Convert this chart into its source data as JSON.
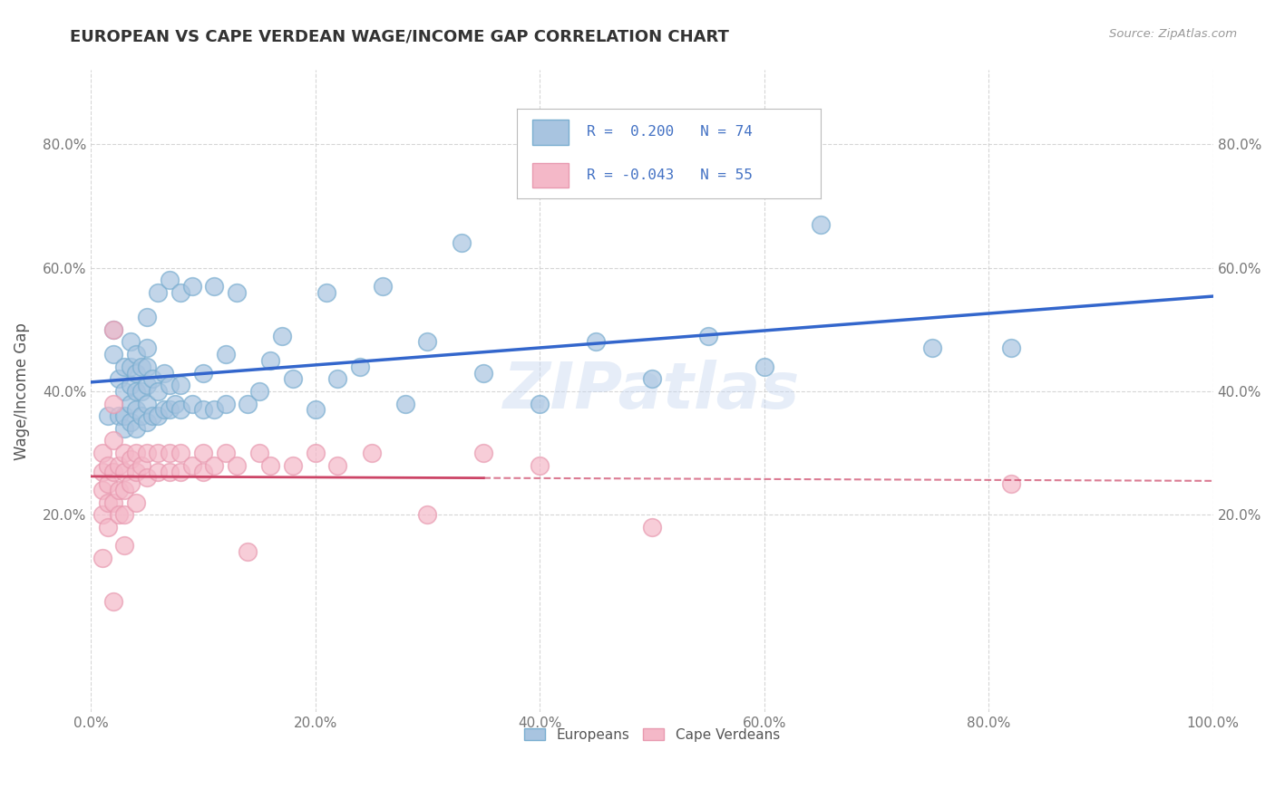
{
  "title": "EUROPEAN VS CAPE VERDEAN WAGE/INCOME GAP CORRELATION CHART",
  "source": "Source: ZipAtlas.com",
  "ylabel": "Wage/Income Gap",
  "xlim": [
    0.0,
    1.0
  ],
  "ylim": [
    -0.12,
    0.92
  ],
  "xticks": [
    0.0,
    0.2,
    0.4,
    0.6,
    0.8,
    1.0
  ],
  "xticklabels": [
    "0.0%",
    "20.0%",
    "40.0%",
    "60.0%",
    "80.0%",
    "100.0%"
  ],
  "yticks": [
    0.2,
    0.4,
    0.6,
    0.8
  ],
  "yticklabels": [
    "20.0%",
    "40.0%",
    "60.0%",
    "80.0%"
  ],
  "blue_color": "#a8c4e0",
  "pink_color": "#f4b8c8",
  "blue_edge_color": "#7aaed0",
  "pink_edge_color": "#e89ab0",
  "blue_line_color": "#3366cc",
  "pink_line_color": "#cc4466",
  "background_color": "#ffffff",
  "grid_color": "#cccccc",
  "watermark": "ZIPatlas",
  "title_color": "#333333",
  "axis_label_color": "#555555",
  "tick_color": "#777777",
  "legend_text_color": "#4472c4",
  "european_x": [
    0.015,
    0.02,
    0.02,
    0.025,
    0.025,
    0.03,
    0.03,
    0.03,
    0.03,
    0.035,
    0.035,
    0.035,
    0.035,
    0.035,
    0.04,
    0.04,
    0.04,
    0.04,
    0.04,
    0.045,
    0.045,
    0.045,
    0.05,
    0.05,
    0.05,
    0.05,
    0.05,
    0.05,
    0.055,
    0.055,
    0.06,
    0.06,
    0.06,
    0.065,
    0.065,
    0.07,
    0.07,
    0.07,
    0.075,
    0.08,
    0.08,
    0.08,
    0.09,
    0.09,
    0.1,
    0.1,
    0.11,
    0.11,
    0.12,
    0.12,
    0.13,
    0.14,
    0.15,
    0.16,
    0.17,
    0.18,
    0.2,
    0.21,
    0.22,
    0.24,
    0.26,
    0.28,
    0.3,
    0.33,
    0.35,
    0.4,
    0.45,
    0.5,
    0.55,
    0.6,
    0.65,
    0.75,
    0.82
  ],
  "european_y": [
    0.36,
    0.46,
    0.5,
    0.36,
    0.42,
    0.34,
    0.36,
    0.4,
    0.44,
    0.35,
    0.38,
    0.41,
    0.44,
    0.48,
    0.34,
    0.37,
    0.4,
    0.43,
    0.46,
    0.36,
    0.4,
    0.44,
    0.35,
    0.38,
    0.41,
    0.44,
    0.47,
    0.52,
    0.36,
    0.42,
    0.36,
    0.4,
    0.56,
    0.37,
    0.43,
    0.37,
    0.41,
    0.58,
    0.38,
    0.37,
    0.41,
    0.56,
    0.38,
    0.57,
    0.37,
    0.43,
    0.37,
    0.57,
    0.38,
    0.46,
    0.56,
    0.38,
    0.4,
    0.45,
    0.49,
    0.42,
    0.37,
    0.56,
    0.42,
    0.44,
    0.57,
    0.38,
    0.48,
    0.64,
    0.43,
    0.38,
    0.48,
    0.42,
    0.49,
    0.44,
    0.67,
    0.47,
    0.47
  ],
  "capeverdean_x": [
    0.01,
    0.01,
    0.01,
    0.01,
    0.01,
    0.015,
    0.015,
    0.015,
    0.015,
    0.02,
    0.02,
    0.02,
    0.02,
    0.02,
    0.02,
    0.025,
    0.025,
    0.025,
    0.03,
    0.03,
    0.03,
    0.03,
    0.03,
    0.035,
    0.035,
    0.04,
    0.04,
    0.04,
    0.045,
    0.05,
    0.05,
    0.06,
    0.06,
    0.07,
    0.07,
    0.08,
    0.08,
    0.09,
    0.1,
    0.1,
    0.11,
    0.12,
    0.13,
    0.14,
    0.15,
    0.16,
    0.18,
    0.2,
    0.22,
    0.25,
    0.3,
    0.35,
    0.4,
    0.5,
    0.82
  ],
  "capeverdean_y": [
    0.3,
    0.27,
    0.24,
    0.2,
    0.13,
    0.28,
    0.25,
    0.22,
    0.18,
    0.5,
    0.38,
    0.32,
    0.27,
    0.22,
    0.06,
    0.28,
    0.24,
    0.2,
    0.3,
    0.27,
    0.24,
    0.2,
    0.15,
    0.29,
    0.25,
    0.3,
    0.27,
    0.22,
    0.28,
    0.3,
    0.26,
    0.3,
    0.27,
    0.3,
    0.27,
    0.3,
    0.27,
    0.28,
    0.3,
    0.27,
    0.28,
    0.3,
    0.28,
    0.14,
    0.3,
    0.28,
    0.28,
    0.3,
    0.28,
    0.3,
    0.2,
    0.3,
    0.28,
    0.18,
    0.25
  ]
}
